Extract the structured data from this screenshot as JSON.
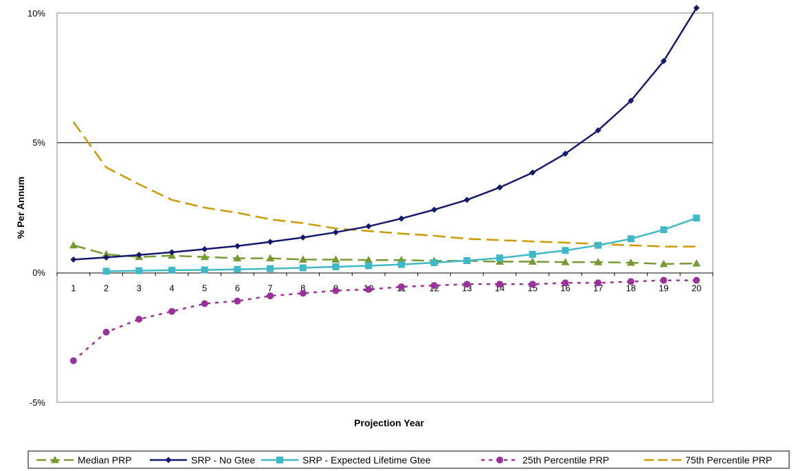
{
  "chart_data": {
    "type": "line",
    "title": "",
    "xlabel": "Projection Year",
    "ylabel": "% Per Annum",
    "x": [
      1,
      2,
      3,
      4,
      5,
      6,
      7,
      8,
      9,
      10,
      11,
      12,
      13,
      14,
      15,
      16,
      17,
      18,
      19,
      20
    ],
    "y_ticks": [
      "10%",
      "5%",
      "0%",
      "-5%"
    ],
    "ylim": [
      -5,
      10
    ],
    "xlim": [
      1,
      20
    ],
    "grid": "horizontal major gridlines",
    "legend": "bottom",
    "series": [
      {
        "name": "Median PRP",
        "color": "#779933",
        "marker": "triangle",
        "dash": "long-dash",
        "values": [
          1.05,
          0.7,
          0.6,
          0.65,
          0.6,
          0.55,
          0.55,
          0.5,
          0.5,
          0.48,
          0.48,
          0.45,
          0.45,
          0.42,
          0.42,
          0.4,
          0.4,
          0.38,
          0.33,
          0.35
        ]
      },
      {
        "name": "SRP - No Gtee",
        "color": "#15196e",
        "marker": "diamond",
        "dash": "solid",
        "values": [
          0.5,
          0.58,
          0.68,
          0.78,
          0.9,
          1.02,
          1.18,
          1.35,
          1.55,
          1.78,
          2.08,
          2.42,
          2.8,
          3.28,
          3.85,
          4.58,
          5.48,
          6.62,
          8.15,
          10.2
        ]
      },
      {
        "name": "SRP - Expected Lifetime Gtee",
        "color": "#3fb8c8",
        "marker": "square",
        "dash": "solid",
        "values": [
          null,
          0.05,
          0.07,
          0.09,
          0.1,
          0.12,
          0.15,
          0.18,
          0.22,
          0.26,
          0.31,
          0.38,
          0.46,
          0.56,
          0.7,
          0.85,
          1.05,
          1.3,
          1.65,
          2.1
        ]
      },
      {
        "name": "25th Percentile PRP",
        "color": "#993399",
        "marker": "circle",
        "dash": "short-dash",
        "values": [
          -3.4,
          -2.3,
          -1.8,
          -1.5,
          -1.2,
          -1.1,
          -0.9,
          -0.8,
          -0.7,
          -0.65,
          -0.55,
          -0.5,
          -0.45,
          -0.45,
          -0.45,
          -0.4,
          -0.4,
          -0.35,
          -0.3,
          -0.3
        ]
      },
      {
        "name": "75th Percentile PRP",
        "color": "#cc9900",
        "marker": "none",
        "dash": "long-dash",
        "values": [
          5.8,
          4.05,
          3.4,
          2.8,
          2.5,
          2.3,
          2.05,
          1.9,
          1.7,
          1.6,
          1.5,
          1.42,
          1.3,
          1.25,
          1.2,
          1.15,
          1.1,
          1.05,
          1.0,
          1.0
        ]
      }
    ]
  }
}
